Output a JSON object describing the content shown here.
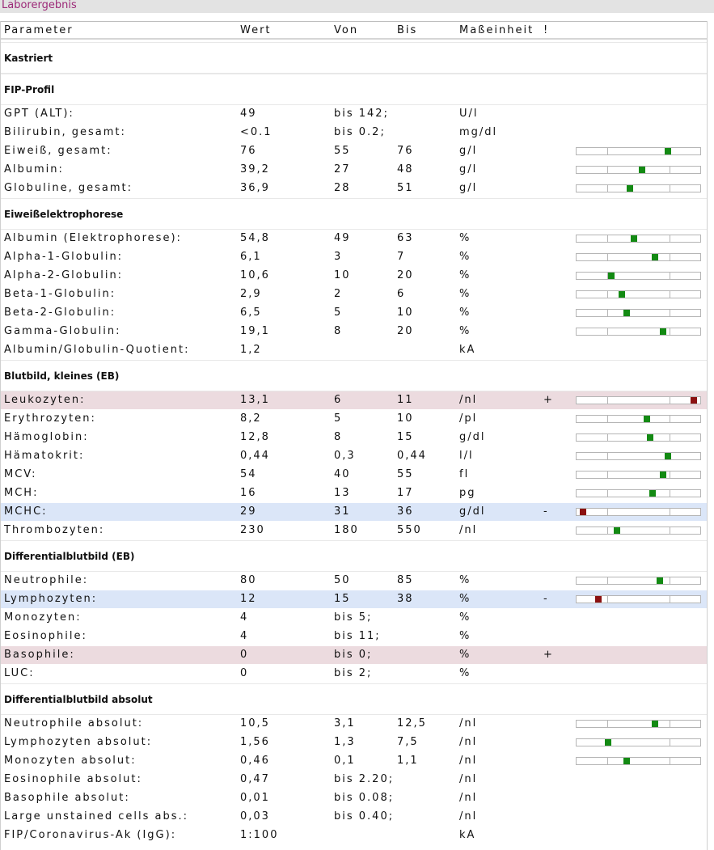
{
  "title": "Laborergebnis",
  "headers": {
    "param": "Parameter",
    "wert": "Wert",
    "von": "Von",
    "bis": "Bis",
    "unit": "Maßeinheit",
    "flag": "!"
  },
  "colors": {
    "accent_title": "#9c2a78",
    "high_row": "#ecdbdf",
    "low_row": "#dbe6f8",
    "marker_normal": "#138a13",
    "marker_out": "#8b1111"
  },
  "sections": [
    {
      "title": "Kastriert",
      "rows": []
    },
    {
      "title": "FIP-Profil",
      "rows": [
        {
          "param": "GPT (ALT):",
          "wert": "49",
          "von": "bis 142;",
          "bis": "",
          "unit": "U/l",
          "flag": ""
        },
        {
          "param": "Bilirubin, gesamt:",
          "wert": "<0.1",
          "von": "bis 0.2;",
          "bis": "",
          "unit": "mg/dl",
          "flag": ""
        },
        {
          "param": "Eiweiß, gesamt:",
          "wert": "76",
          "von": "55",
          "bis": "76",
          "unit": "g/l",
          "flag": "",
          "marker": 0.75
        },
        {
          "param": "Albumin:",
          "wert": "39,2",
          "von": "27",
          "bis": "48",
          "unit": "g/l",
          "flag": "",
          "marker": 0.53
        },
        {
          "param": "Globuline, gesamt:",
          "wert": "36,9",
          "von": "28",
          "bis": "51",
          "unit": "g/l",
          "flag": "",
          "marker": 0.43
        }
      ]
    },
    {
      "title": "Eiweißelektrophorese",
      "rows": [
        {
          "param": "Albumin (Elektrophorese):",
          "wert": "54,8",
          "von": "49",
          "bis": "63",
          "unit": "%",
          "flag": "",
          "marker": 0.46
        },
        {
          "param": "Alpha-1-Globulin:",
          "wert": "6,1",
          "von": "3",
          "bis": "7",
          "unit": "%",
          "flag": "",
          "marker": 0.64
        },
        {
          "param": "Alpha-2-Globulin:",
          "wert": "10,6",
          "von": "10",
          "bis": "20",
          "unit": "%",
          "flag": "",
          "marker": 0.27
        },
        {
          "param": "Beta-1-Globulin:",
          "wert": "2,9",
          "von": "2",
          "bis": "6",
          "unit": "%",
          "flag": "",
          "marker": 0.36
        },
        {
          "param": "Beta-2-Globulin:",
          "wert": "6,5",
          "von": "5",
          "bis": "10",
          "unit": "%",
          "flag": "",
          "marker": 0.4
        },
        {
          "param": "Gamma-Globulin:",
          "wert": "19,1",
          "von": "8",
          "bis": "20",
          "unit": "%",
          "flag": "",
          "marker": 0.71
        },
        {
          "param": "Albumin/Globulin-Quotient:",
          "wert": "1,2",
          "von": "",
          "bis": "",
          "unit": "kA",
          "flag": ""
        }
      ]
    },
    {
      "title": "Blutbild, kleines (EB)",
      "rows": [
        {
          "param": "Leukozyten:",
          "wert": "13,1",
          "von": "6",
          "bis": "11",
          "unit": "/nl",
          "flag": "+",
          "state": "high",
          "marker": 0.97
        },
        {
          "param": "Erythrozyten:",
          "wert": "8,2",
          "von": "5",
          "bis": "10",
          "unit": "/pl",
          "flag": "",
          "marker": 0.57
        },
        {
          "param": "Hämoglobin:",
          "wert": "12,8",
          "von": "8",
          "bis": "15",
          "unit": "g/dl",
          "flag": "",
          "marker": 0.6
        },
        {
          "param": "Hämatokrit:",
          "wert": "0,44",
          "von": "0,3",
          "bis": "0,44",
          "unit": "l/l",
          "flag": "",
          "marker": 0.75
        },
        {
          "param": "MCV:",
          "wert": "54",
          "von": "40",
          "bis": "55",
          "unit": "fl",
          "flag": "",
          "marker": 0.71
        },
        {
          "param": "MCH:",
          "wert": "16",
          "von": "13",
          "bis": "17",
          "unit": "pg",
          "flag": "",
          "marker": 0.62
        },
        {
          "param": "MCHC:",
          "wert": "29",
          "von": "31",
          "bis": "36",
          "unit": "g/dl",
          "flag": "-",
          "state": "low",
          "marker": 0.03
        },
        {
          "param": "Thrombozyten:",
          "wert": "230",
          "von": "180",
          "bis": "550",
          "unit": "/nl",
          "flag": "",
          "marker": 0.32
        }
      ]
    },
    {
      "title": "Differentialblutbild (EB)",
      "rows": [
        {
          "param": "Neutrophile:",
          "wert": "80",
          "von": "50",
          "bis": "85",
          "unit": "%",
          "flag": "",
          "marker": 0.68
        },
        {
          "param": "Lymphozyten:",
          "wert": "12",
          "von": "15",
          "bis": "38",
          "unit": "%",
          "flag": "-",
          "state": "low",
          "marker": 0.16
        },
        {
          "param": "Monozyten:",
          "wert": "4",
          "von": "bis 5;",
          "bis": "",
          "unit": "%",
          "flag": ""
        },
        {
          "param": "Eosinophile:",
          "wert": "4",
          "von": "bis 11;",
          "bis": "",
          "unit": "%",
          "flag": ""
        },
        {
          "param": "Basophile:",
          "wert": "0",
          "von": "bis 0;",
          "bis": "",
          "unit": "%",
          "flag": "+",
          "state": "high"
        },
        {
          "param": "LUC:",
          "wert": "0",
          "von": "bis 2;",
          "bis": "",
          "unit": "%",
          "flag": ""
        }
      ]
    },
    {
      "title": "Differentialblutbild absolut",
      "rows": [
        {
          "param": "Neutrophile absolut:",
          "wert": "10,5",
          "von": "3,1",
          "bis": "12,5",
          "unit": "/nl",
          "flag": "",
          "marker": 0.64
        },
        {
          "param": "Lymphozyten absolut:",
          "wert": "1,56",
          "von": "1,3",
          "bis": "7,5",
          "unit": "/nl",
          "flag": "",
          "marker": 0.24
        },
        {
          "param": "Monozyten absolut:",
          "wert": "0,46",
          "von": "0,1",
          "bis": "1,1",
          "unit": "/nl",
          "flag": "",
          "marker": 0.4
        },
        {
          "param": "Eosinophile absolut:",
          "wert": "0,47",
          "von": "bis 2.20;",
          "bis": "",
          "unit": "/nl",
          "flag": ""
        },
        {
          "param": "Basophile absolut:",
          "wert": "0,01",
          "von": "bis 0.08;",
          "bis": "",
          "unit": "/nl",
          "flag": ""
        },
        {
          "param": "Large unstained cells abs.:",
          "wert": "0,03",
          "von": "bis 0.40;",
          "bis": "",
          "unit": "/nl",
          "flag": ""
        },
        {
          "param": "FIP/Coronavirus-Ak (IgG):",
          "wert": "1:100",
          "von": "",
          "bis": "",
          "unit": "kA",
          "flag": ""
        }
      ]
    }
  ]
}
